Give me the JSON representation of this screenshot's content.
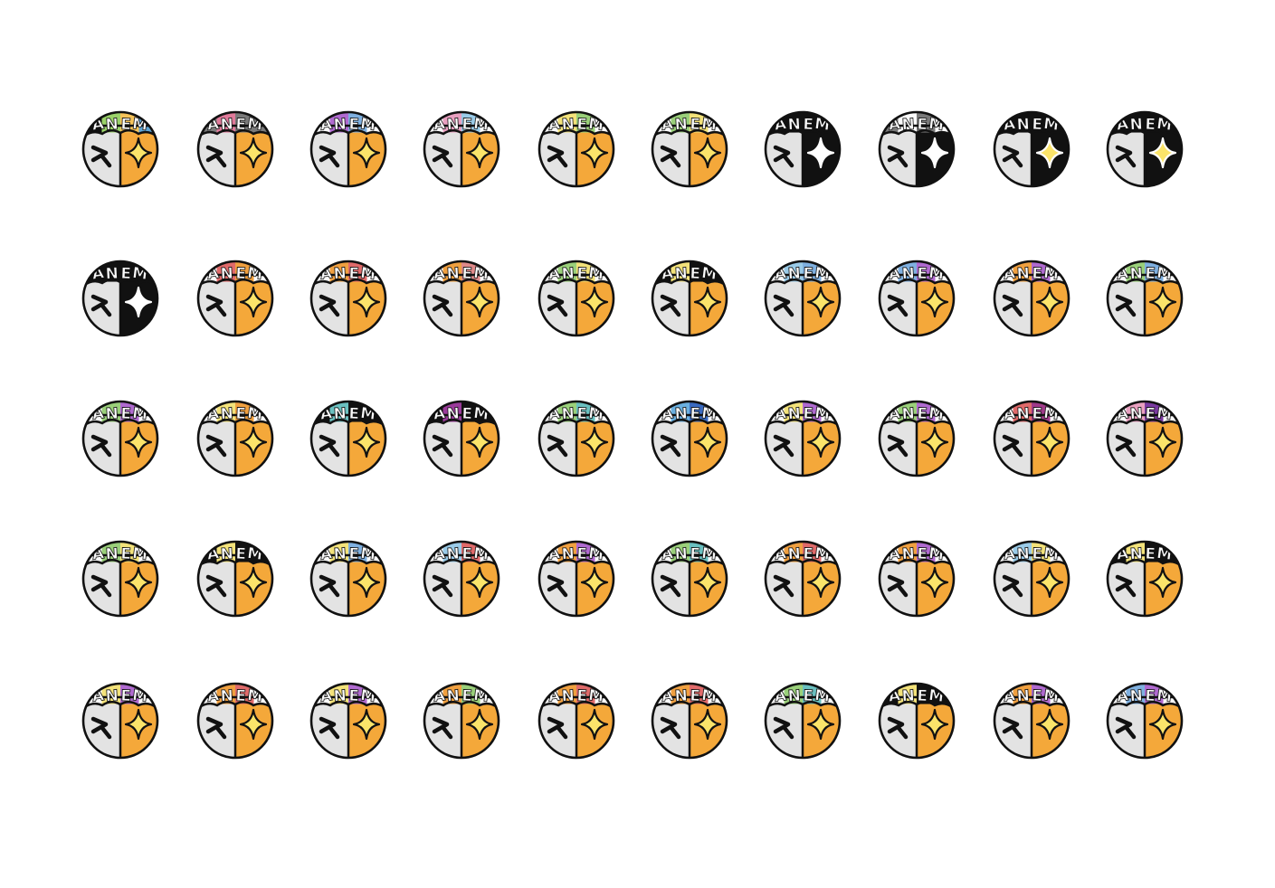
{
  "sheet": {
    "title": "",
    "rows": 5,
    "columns": 10,
    "badge_text": "ANEM",
    "colors": {
      "outline": "#111111",
      "face_left": "#e3e3e3",
      "face_right": "#f4a83a",
      "sparkle": "#fbe46a",
      "background": "#ffffff"
    },
    "badges": [
      {
        "row": 1,
        "col": 1,
        "hair": [
          "#111111",
          "#9bd36a",
          "#f6c35a",
          "#5fa6d6"
        ],
        "right": "#f4a83a"
      },
      {
        "row": 1,
        "col": 2,
        "hair": [
          "#7a7a7a",
          "#e07a9a",
          "#7a7a7a",
          "#7a7a7a"
        ],
        "right": "#f4a83a"
      },
      {
        "row": 1,
        "col": 3,
        "hair": [
          "#fbfbfb",
          "#b06ad0",
          "#7fb0e0",
          "#fbfbfb"
        ],
        "right": "#f4a83a"
      },
      {
        "row": 1,
        "col": 4,
        "hair": [
          "#fbfbfb",
          "#e9a0c0",
          "#9acbe8",
          "#fbfbfb"
        ],
        "right": "#f4a83a"
      },
      {
        "row": 1,
        "col": 5,
        "hair": [
          "#fbfbfb",
          "#f3e27a",
          "#9ad07a",
          "#fbfbfb"
        ],
        "right": "#f4a83a"
      },
      {
        "row": 1,
        "col": 6,
        "hair": [
          "#fbfbfb",
          "#9ad07a",
          "#f3e27a",
          "#fbfbfb"
        ],
        "right": "#f4a83a"
      },
      {
        "row": 1,
        "col": 7,
        "hair": [
          "#111111",
          "#111111",
          "#111111",
          "#111111"
        ],
        "right": "#111111"
      },
      {
        "row": 1,
        "col": 8,
        "hair": [
          "#7a7a7a",
          "#fbfbfb",
          "#7a7a7a",
          "#fbfbfb"
        ],
        "right": "#111111"
      },
      {
        "row": 1,
        "col": 9,
        "hair": [
          "#111111",
          "#111111",
          "#111111",
          "#111111"
        ],
        "right": "#111111"
      },
      {
        "row": 1,
        "col": 10,
        "hair": [
          "#111111",
          "#111111",
          "#111111",
          "#111111"
        ],
        "right": "#111111"
      },
      {
        "row": 2,
        "col": 1,
        "hair": [
          "#111111",
          "#111111",
          "#111111",
          "#111111"
        ],
        "right": "#111111"
      },
      {
        "row": 2,
        "col": 2,
        "hair": [
          "#fbfbfb",
          "#e06a6a",
          "#f0a040",
          "#fbfbfb"
        ],
        "right": "#f4a83a"
      },
      {
        "row": 2,
        "col": 3,
        "hair": [
          "#fbfbfb",
          "#f0a040",
          "#e06a6a",
          "#fbfbfb"
        ],
        "right": "#f4a83a"
      },
      {
        "row": 2,
        "col": 4,
        "hair": [
          "#fbfbfb",
          "#f0a040",
          "#e08a8a",
          "#fbfbfb"
        ],
        "right": "#f4a83a"
      },
      {
        "row": 2,
        "col": 5,
        "hair": [
          "#fbfbfb",
          "#9ad07a",
          "#f3e27a",
          "#fbfbfb"
        ],
        "right": "#f4a83a"
      },
      {
        "row": 2,
        "col": 6,
        "hair": [
          "#111111",
          "#f3e27a",
          "#111111",
          "#111111"
        ],
        "right": "#f4a83a"
      },
      {
        "row": 2,
        "col": 7,
        "hair": [
          "#fbfbfb",
          "#9acbe8",
          "#7fb0e0",
          "#fbfbfb"
        ],
        "right": "#f4a83a"
      },
      {
        "row": 2,
        "col": 8,
        "hair": [
          "#fbfbfb",
          "#7fb0e0",
          "#b06ad0",
          "#fbfbfb"
        ],
        "right": "#f4a83a"
      },
      {
        "row": 2,
        "col": 9,
        "hair": [
          "#fbfbfb",
          "#f0a040",
          "#b06ad0",
          "#fbfbfb"
        ],
        "right": "#f4a83a"
      },
      {
        "row": 2,
        "col": 10,
        "hair": [
          "#fbfbfb",
          "#9ad07a",
          "#7fb0e0",
          "#fbfbfb"
        ],
        "right": "#f4a83a"
      },
      {
        "row": 3,
        "col": 1,
        "hair": [
          "#fbfbfb",
          "#9ad07a",
          "#b06ad0",
          "#fbfbfb"
        ],
        "right": "#f4a83a"
      },
      {
        "row": 3,
        "col": 2,
        "hair": [
          "#fbfbfb",
          "#f3e27a",
          "#f0a040",
          "#fbfbfb"
        ],
        "right": "#f4a83a"
      },
      {
        "row": 3,
        "col": 3,
        "hair": [
          "#111111",
          "#6ac0c0",
          "#111111",
          "#111111"
        ],
        "right": "#f4a83a"
      },
      {
        "row": 3,
        "col": 4,
        "hair": [
          "#111111",
          "#9a3a9a",
          "#111111",
          "#111111"
        ],
        "right": "#f4a83a"
      },
      {
        "row": 3,
        "col": 5,
        "hair": [
          "#fbfbfb",
          "#9ad07a",
          "#6ac0c0",
          "#fbfbfb"
        ],
        "right": "#f4a83a"
      },
      {
        "row": 3,
        "col": 6,
        "hair": [
          "#fbfbfb",
          "#6ab0e0",
          "#3a6ac0",
          "#fbfbfb"
        ],
        "right": "#f4a83a"
      },
      {
        "row": 3,
        "col": 7,
        "hair": [
          "#fbfbfb",
          "#f3e27a",
          "#b06ad0",
          "#fbfbfb"
        ],
        "right": "#f4a83a"
      },
      {
        "row": 3,
        "col": 8,
        "hair": [
          "#fbfbfb",
          "#9ad07a",
          "#b06ad0",
          "#fbfbfb"
        ],
        "right": "#f4a83a"
      },
      {
        "row": 3,
        "col": 9,
        "hair": [
          "#fbfbfb",
          "#e06a6a",
          "#a03a8a",
          "#fbfbfb"
        ],
        "right": "#f4a83a"
      },
      {
        "row": 3,
        "col": 10,
        "hair": [
          "#fbfbfb",
          "#e9a0c0",
          "#7a3aa0",
          "#fbfbfb"
        ],
        "right": "#f4a83a"
      },
      {
        "row": 4,
        "col": 1,
        "hair": [
          "#fbfbfb",
          "#9ad07a",
          "#f3e27a",
          "#fbfbfb"
        ],
        "right": "#f4a83a"
      },
      {
        "row": 4,
        "col": 2,
        "hair": [
          "#111111",
          "#f3e27a",
          "#111111",
          "#111111"
        ],
        "right": "#f4a83a"
      },
      {
        "row": 4,
        "col": 3,
        "hair": [
          "#fbfbfb",
          "#f3e27a",
          "#7fb0e0",
          "#fbfbfb"
        ],
        "right": "#f4a83a"
      },
      {
        "row": 4,
        "col": 4,
        "hair": [
          "#fbfbfb",
          "#9acbe8",
          "#e06a6a",
          "#fbfbfb"
        ],
        "right": "#f4a83a"
      },
      {
        "row": 4,
        "col": 5,
        "hair": [
          "#fbfbfb",
          "#f0a040",
          "#b06ad0",
          "#fbfbfb"
        ],
        "right": "#f4a83a"
      },
      {
        "row": 4,
        "col": 6,
        "hair": [
          "#fbfbfb",
          "#9ad07a",
          "#6ac0c0",
          "#fbfbfb"
        ],
        "right": "#f4a83a"
      },
      {
        "row": 4,
        "col": 7,
        "hair": [
          "#fbfbfb",
          "#f0a040",
          "#e06a6a",
          "#fbfbfb"
        ],
        "right": "#f4a83a"
      },
      {
        "row": 4,
        "col": 8,
        "hair": [
          "#fbfbfb",
          "#f0a040",
          "#b06ad0",
          "#fbfbfb"
        ],
        "right": "#f4a83a"
      },
      {
        "row": 4,
        "col": 9,
        "hair": [
          "#fbfbfb",
          "#9acbe8",
          "#f3e27a",
          "#fbfbfb"
        ],
        "right": "#f4a83a"
      },
      {
        "row": 4,
        "col": 10,
        "hair": [
          "#111111",
          "#f3e27a",
          "#111111",
          "#111111"
        ],
        "right": "#f4a83a"
      },
      {
        "row": 5,
        "col": 1,
        "hair": [
          "#fbfbfb",
          "#f3e27a",
          "#b06ad0",
          "#fbfbfb"
        ],
        "right": "#f4a83a"
      },
      {
        "row": 5,
        "col": 2,
        "hair": [
          "#fbfbfb",
          "#f0a040",
          "#e06a6a",
          "#fbfbfb"
        ],
        "right": "#f4a83a"
      },
      {
        "row": 5,
        "col": 3,
        "hair": [
          "#fbfbfb",
          "#f3e27a",
          "#b06ad0",
          "#fbfbfb"
        ],
        "right": "#f4a83a"
      },
      {
        "row": 5,
        "col": 4,
        "hair": [
          "#fbfbfb",
          "#f0a040",
          "#9ad07a",
          "#fbfbfb"
        ],
        "right": "#f4a83a"
      },
      {
        "row": 5,
        "col": 5,
        "hair": [
          "#fbfbfb",
          "#f0a040",
          "#e06a6a",
          "#fbfbfb"
        ],
        "right": "#f4a83a"
      },
      {
        "row": 5,
        "col": 6,
        "hair": [
          "#fbfbfb",
          "#f0a040",
          "#e06a6a",
          "#fbfbfb"
        ],
        "right": "#f4a83a"
      },
      {
        "row": 5,
        "col": 7,
        "hair": [
          "#fbfbfb",
          "#9ad07a",
          "#6ac0c0",
          "#fbfbfb"
        ],
        "right": "#f4a83a"
      },
      {
        "row": 5,
        "col": 8,
        "hair": [
          "#111111",
          "#f3e27a",
          "#111111",
          "#111111"
        ],
        "right": "#f4a83a"
      },
      {
        "row": 5,
        "col": 9,
        "hair": [
          "#fbfbfb",
          "#f0a040",
          "#b06ad0",
          "#fbfbfb"
        ],
        "right": "#f4a83a"
      },
      {
        "row": 5,
        "col": 10,
        "hair": [
          "#fbfbfb",
          "#7fb0e0",
          "#b06ad0",
          "#fbfbfb"
        ],
        "right": "#f4a83a"
      }
    ]
  }
}
